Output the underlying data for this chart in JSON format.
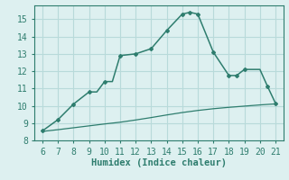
{
  "x_main": [
    6,
    7,
    8,
    9,
    9.5,
    10,
    10.5,
    11,
    12,
    13,
    14,
    15,
    15.5,
    16,
    17,
    18,
    18.5,
    19,
    19.5,
    20,
    20.5,
    21
  ],
  "y_main": [
    8.55,
    9.2,
    10.1,
    10.8,
    10.8,
    11.4,
    11.4,
    12.9,
    13.0,
    13.3,
    14.35,
    15.3,
    15.4,
    15.3,
    13.1,
    11.75,
    11.75,
    12.1,
    12.1,
    12.1,
    11.1,
    10.15
  ],
  "x_ref": [
    6,
    7,
    8,
    9,
    10,
    11,
    12,
    13,
    14,
    15,
    16,
    17,
    18,
    19,
    20,
    21
  ],
  "y_ref": [
    8.52,
    8.62,
    8.73,
    8.84,
    8.95,
    9.05,
    9.18,
    9.32,
    9.47,
    9.61,
    9.73,
    9.83,
    9.91,
    9.98,
    10.05,
    10.11
  ],
  "x_markers": [
    6,
    7,
    8,
    9,
    10,
    11,
    12,
    13,
    14,
    15,
    15.5,
    16,
    17,
    18,
    18.5,
    19,
    20.5,
    21
  ],
  "y_markers": [
    8.55,
    9.2,
    10.1,
    10.8,
    11.4,
    12.9,
    13.0,
    13.3,
    14.35,
    15.3,
    15.4,
    15.3,
    13.1,
    11.75,
    11.75,
    12.1,
    11.1,
    10.15
  ],
  "line_color": "#2e7d6e",
  "bg_color": "#ddf0f0",
  "grid_color": "#b8dada",
  "xlabel": "Humidex (Indice chaleur)",
  "xlim": [
    5.5,
    21.5
  ],
  "ylim": [
    8,
    15.8
  ],
  "xticks": [
    6,
    7,
    8,
    9,
    10,
    11,
    12,
    13,
    14,
    15,
    16,
    17,
    18,
    19,
    20,
    21
  ],
  "yticks": [
    8,
    9,
    10,
    11,
    12,
    13,
    14,
    15
  ],
  "axis_fontsize": 7.5,
  "tick_fontsize": 7
}
